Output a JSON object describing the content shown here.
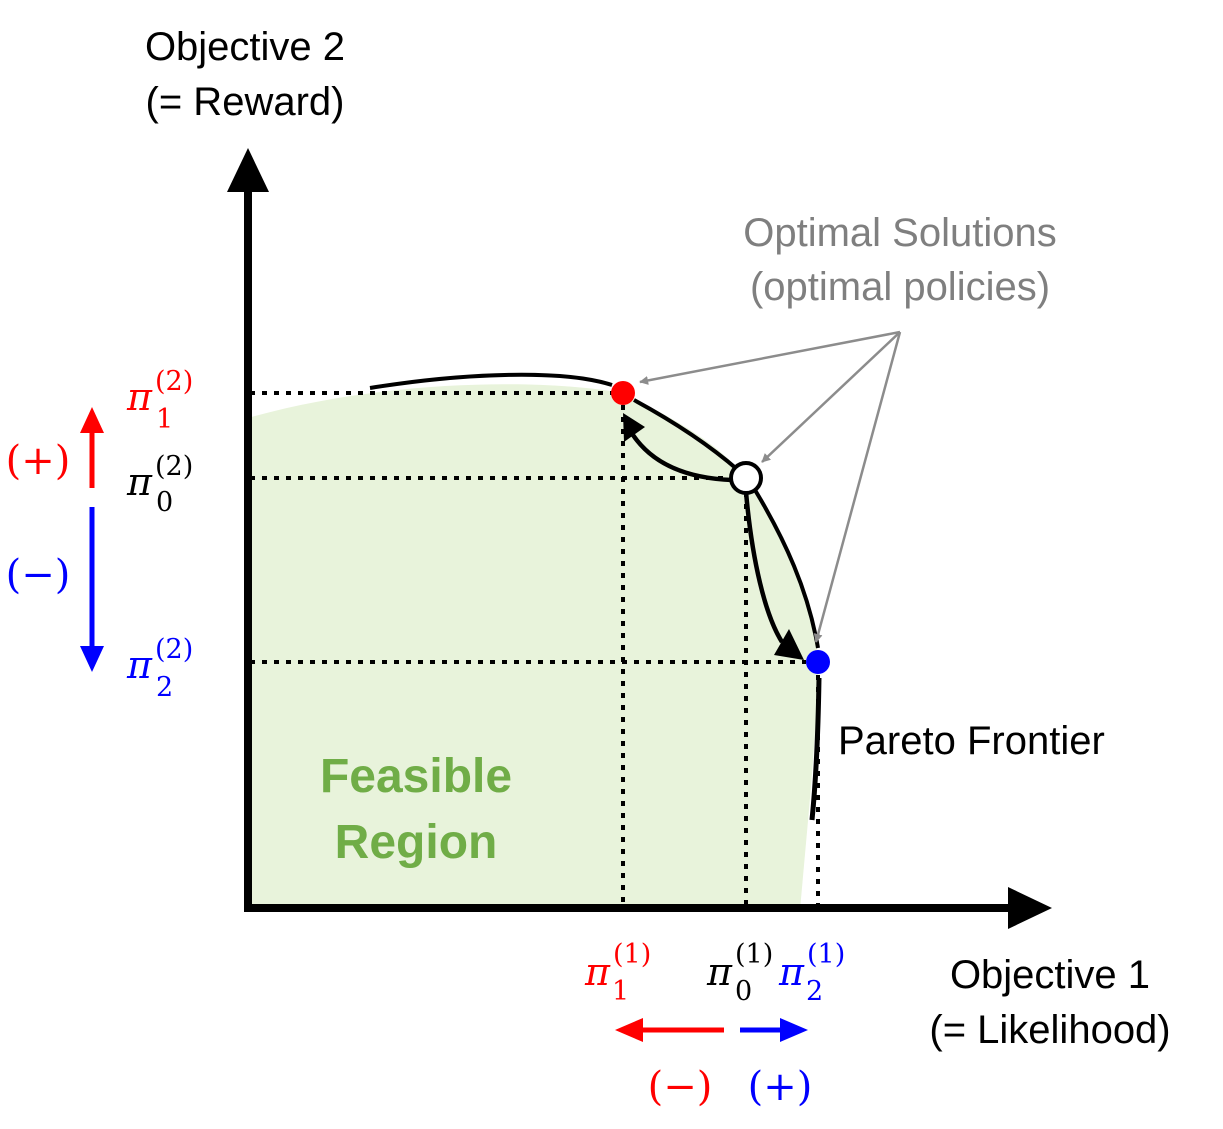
{
  "axes": {
    "y_title_line1": "Objective 2",
    "y_title_line2": "(= Reward)",
    "x_title_line1": "Objective 1",
    "x_title_line2": "(= Likelihood)"
  },
  "annotation": {
    "line1": "Optimal Solutions",
    "line2": "(optimal policies)"
  },
  "frontier_label": "Pareto Frontier",
  "region_label": {
    "line1": "Feasible",
    "line2": "Region"
  },
  "y_ticks": [
    {
      "symbol": "π",
      "sub": "1",
      "sup": "(2)",
      "color": "#ff0000"
    },
    {
      "symbol": "π",
      "sub": "0",
      "sup": "(2)",
      "color": "#000000"
    },
    {
      "symbol": "π",
      "sub": "2",
      "sup": "(2)",
      "color": "#0000ff"
    }
  ],
  "x_ticks": [
    {
      "symbol": "π",
      "sub": "1",
      "sup": "(1)",
      "color": "#ff0000"
    },
    {
      "symbol": "π",
      "sub": "0",
      "sup": "(1)",
      "color": "#000000"
    },
    {
      "symbol": "π",
      "sub": "2",
      "sup": "(1)",
      "color": "#0000ff"
    }
  ],
  "signs": {
    "y_plus": "(+)",
    "y_minus": "(−)",
    "x_minus": "(−)",
    "x_plus": "(+)"
  },
  "colors": {
    "region_fill": "#e8f3db",
    "region_text": "#70ad47",
    "annotation": "#7f7f7f",
    "red": "#ff0000",
    "blue": "#0000ff",
    "black": "#000000"
  }
}
